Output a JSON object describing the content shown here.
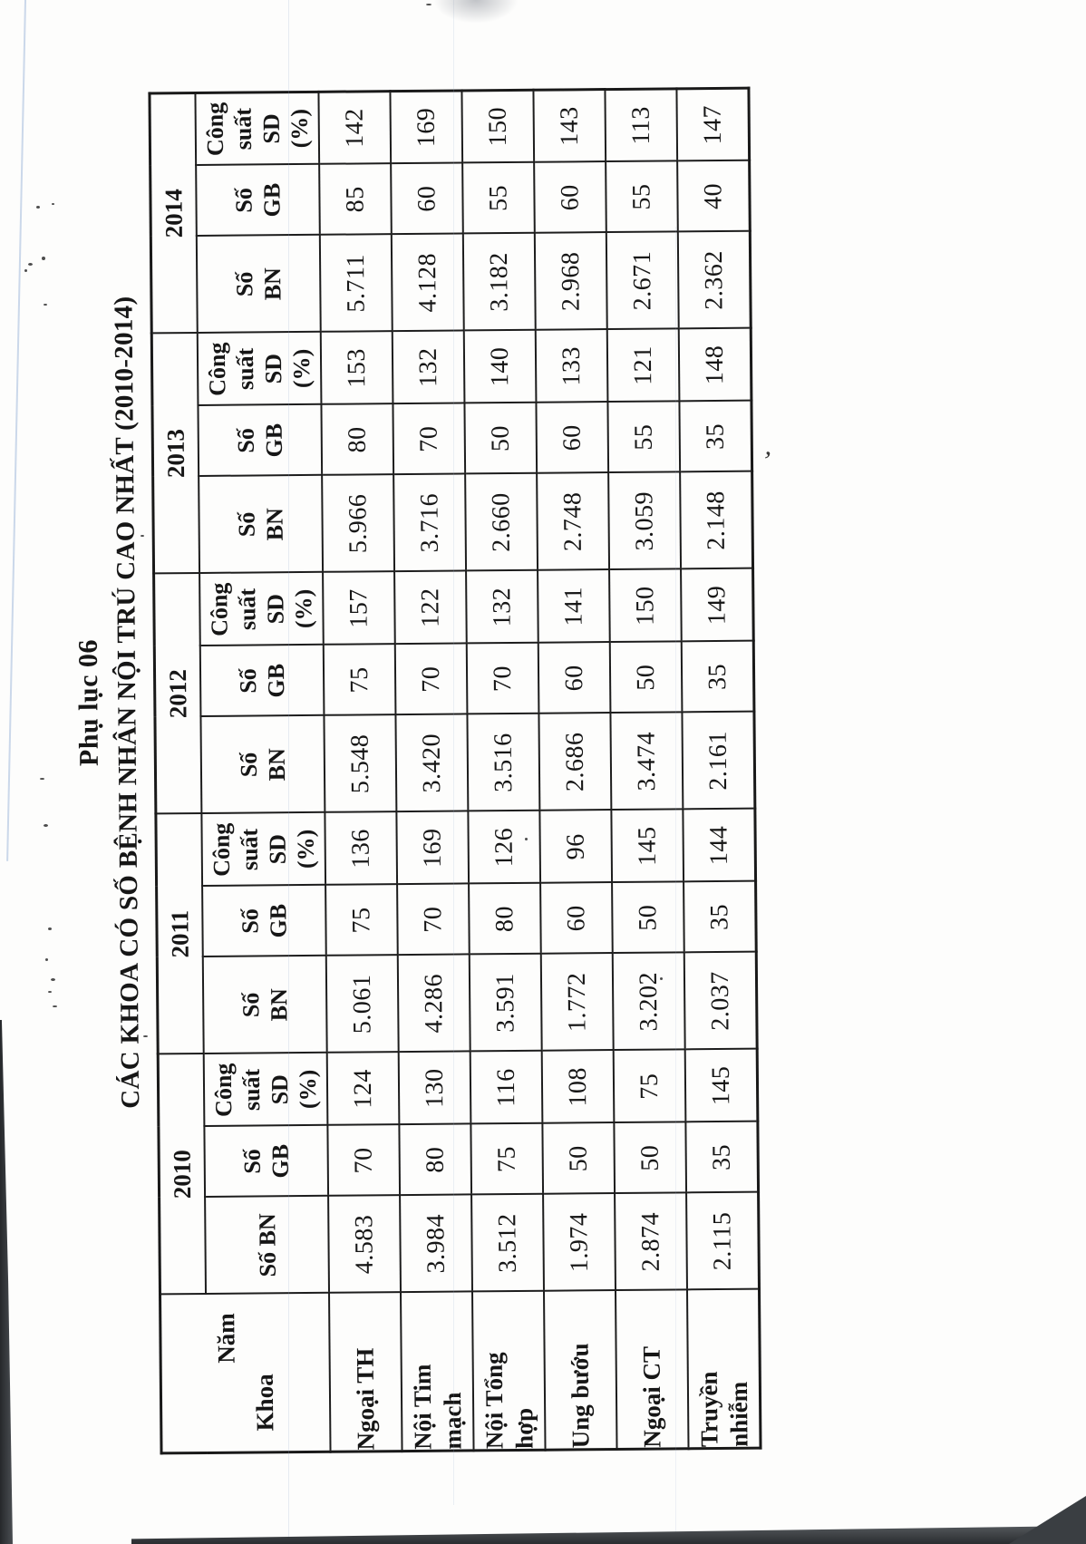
{
  "document": {
    "label": "Phụ lục 06",
    "title": "CÁC KHOA CÓ SỐ BỆNH NHÂN NỘI TRÚ CAO NHẤT (2010-2014)"
  },
  "chart_data": {
    "type": "table",
    "title": "CÁC KHOA CÓ SỐ BỆNH NHÂN NỘI TRÚ CAO NHẤT (2010-2014)",
    "corner_header": {
      "top_right": "Năm",
      "bottom_left": "Khoa"
    },
    "year_groups": [
      {
        "year": "2010",
        "columns": [
          {
            "key": "so_bn",
            "label_lines": [
              "Số BN"
            ]
          },
          {
            "key": "so_gb",
            "label_lines": [
              "Số",
              "GB"
            ]
          },
          {
            "key": "cong_suat_sd",
            "label_lines": [
              "Công",
              "suất",
              "SD",
              "(%)"
            ]
          }
        ]
      },
      {
        "year": "2011",
        "columns": [
          {
            "key": "so_bn",
            "label_lines": [
              "Số",
              "BN"
            ]
          },
          {
            "key": "so_gb",
            "label_lines": [
              "Số",
              "GB"
            ]
          },
          {
            "key": "cong_suat_sd",
            "label_lines": [
              "Công",
              "suất",
              "SD",
              "(%)"
            ]
          }
        ]
      },
      {
        "year": "2012",
        "columns": [
          {
            "key": "so_bn",
            "label_lines": [
              "Số",
              "BN"
            ]
          },
          {
            "key": "so_gb",
            "label_lines": [
              "Số",
              "GB"
            ]
          },
          {
            "key": "cong_suat_sd",
            "label_lines": [
              "Công",
              "suất",
              "SD",
              "(%)"
            ]
          }
        ]
      },
      {
        "year": "2013",
        "columns": [
          {
            "key": "so_bn",
            "label_lines": [
              "Số",
              "BN"
            ]
          },
          {
            "key": "so_gb",
            "label_lines": [
              "Số",
              "GB"
            ]
          },
          {
            "key": "cong_suat_sd",
            "label_lines": [
              "Công",
              "suất",
              "SD",
              "(%)"
            ]
          }
        ]
      },
      {
        "year": "2014",
        "columns": [
          {
            "key": "so_bn",
            "label_lines": [
              "Số",
              "BN"
            ]
          },
          {
            "key": "so_gb",
            "label_lines": [
              "Số",
              "GB"
            ]
          },
          {
            "key": "cong_suat_sd",
            "label_lines": [
              "Công",
              "suất",
              "SD",
              "(%)"
            ]
          }
        ]
      }
    ],
    "rows": [
      {
        "khoa": "Ngoại TH",
        "khoa_lines": [
          "Ngoại TH"
        ],
        "values": {
          "2010": [
            "4.583",
            "70",
            "124"
          ],
          "2011": [
            "5.061",
            "75",
            "136"
          ],
          "2012": [
            "5.548",
            "75",
            "157"
          ],
          "2013": [
            "5.966",
            "80",
            "153"
          ],
          "2014": [
            "5.711",
            "85",
            "142"
          ]
        }
      },
      {
        "khoa": "Nội Tim mạch",
        "khoa_lines": [
          "Nội Tim",
          "mạch"
        ],
        "values": {
          "2010": [
            "3.984",
            "80",
            "130"
          ],
          "2011": [
            "4.286",
            "70",
            "169"
          ],
          "2012": [
            "3.420",
            "70",
            "122"
          ],
          "2013": [
            "3.716",
            "70",
            "132"
          ],
          "2014": [
            "4.128",
            "60",
            "169"
          ]
        }
      },
      {
        "khoa": "Nội Tổng hợp",
        "khoa_lines": [
          "Nội Tổng",
          "hợp"
        ],
        "values": {
          "2010": [
            "3.512",
            "75",
            "116"
          ],
          "2011": [
            "3.591",
            "80",
            "126"
          ],
          "2012": [
            "3.516",
            "70",
            "132"
          ],
          "2013": [
            "2.660",
            "50",
            "140"
          ],
          "2014": [
            "3.182",
            "55",
            "150"
          ]
        }
      },
      {
        "khoa": "Ung bướu",
        "khoa_lines": [
          "Ung bướu"
        ],
        "values": {
          "2010": [
            "1.974",
            "50",
            "108"
          ],
          "2011": [
            "1.772",
            "60",
            "96"
          ],
          "2012": [
            "2.686",
            "60",
            "141"
          ],
          "2013": [
            "2.748",
            "60",
            "133"
          ],
          "2014": [
            "2.968",
            "60",
            "143"
          ]
        }
      },
      {
        "khoa": "Ngoại CT",
        "khoa_lines": [
          "Ngoại CT"
        ],
        "values": {
          "2010": [
            "2.874",
            "50",
            "75"
          ],
          "2011": [
            "3.202",
            "50",
            "145"
          ],
          "2012": [
            "3.474",
            "50",
            "150"
          ],
          "2013": [
            "3.059",
            "55",
            "121"
          ],
          "2014": [
            "2.671",
            "55",
            "113"
          ]
        }
      },
      {
        "khoa": "Truyền nhiễm",
        "khoa_lines": [
          "Truyền",
          "nhiễm"
        ],
        "values": {
          "2010": [
            "2.115",
            "35",
            "145"
          ],
          "2011": [
            "2.037",
            "35",
            "144"
          ],
          "2012": [
            "2.161",
            "35",
            "149"
          ],
          "2013": [
            "2.148",
            "35",
            "148"
          ],
          "2014": [
            "2.362",
            "40",
            "147"
          ]
        }
      }
    ]
  }
}
